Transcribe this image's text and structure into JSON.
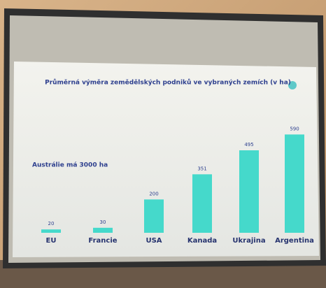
{
  "chart_data": {
    "type": "bar",
    "title": "Průměrná výměra zemědělských podniků ve vybraných zemích (v ha)",
    "annotation": "Austrálie má 3000 ha",
    "categories": [
      "EU",
      "Francie",
      "USA",
      "Kanada",
      "Ukrajina",
      "Argentina"
    ],
    "values": [
      20,
      30,
      200,
      351,
      495,
      590
    ],
    "color": "#45d9cb",
    "ylim": [
      0,
      600
    ]
  }
}
